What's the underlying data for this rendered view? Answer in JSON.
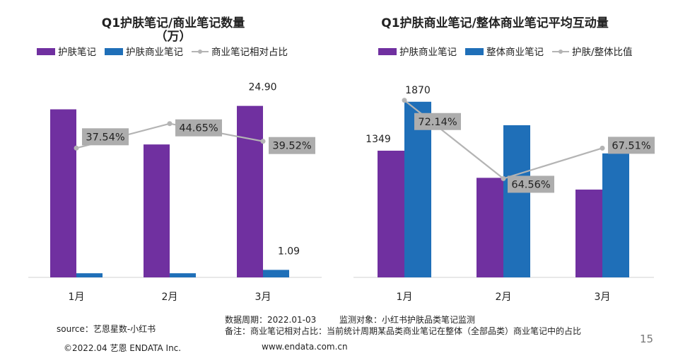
{
  "chart_data": [
    {
      "type": "bar",
      "title": "Q1护肤笔记/商业笔记数量",
      "subtitle": "（万）",
      "categories": [
        "1月",
        "2月",
        "3月"
      ],
      "series": [
        {
          "name": "护肤笔记",
          "kind": "bar",
          "color": "#7030A0",
          "values": [
            24.4,
            19.3,
            24.9
          ]
        },
        {
          "name": "护肤商业笔记",
          "kind": "bar",
          "color": "#1F6FB8",
          "values": [
            0.6,
            0.6,
            1.09
          ]
        },
        {
          "name": "商业笔记相对占比",
          "kind": "line",
          "color": "#B4B4B4",
          "values": [
            37.54,
            44.65,
            39.52
          ],
          "unit": "%"
        }
      ],
      "ylim": [
        0,
        30
      ],
      "line_ylim": [
        0,
        60
      ],
      "data_labels": [
        "24.90",
        "1.09",
        "37.54%",
        "44.65%",
        "39.52%"
      ],
      "xlabel": "",
      "ylabel": ""
    },
    {
      "type": "bar",
      "title": "Q1护肤商业笔记/整体商业笔记平均互动量",
      "categories": [
        "1月",
        "2月",
        "3月"
      ],
      "series": [
        {
          "name": "护肤商业笔记",
          "kind": "bar",
          "color": "#7030A0",
          "values": [
            1349,
            1060,
            935
          ]
        },
        {
          "name": "整体商业笔记",
          "kind": "bar",
          "color": "#1F6FB8",
          "values": [
            1870,
            1620,
            1320
          ]
        },
        {
          "name": "护肤/整体比值",
          "kind": "line",
          "color": "#B4B4B4",
          "values": [
            72.14,
            64.56,
            67.51
          ],
          "unit": "%"
        }
      ],
      "ylim": [
        0,
        2200
      ],
      "line_ylim": [
        55,
        75
      ],
      "data_labels": [
        "1349",
        "1870",
        "72.14%",
        "64.56%",
        "67.51%"
      ],
      "xlabel": "",
      "ylabel": ""
    }
  ],
  "footer": {
    "source": "source：艺恩星数-小红书",
    "period": "数据周期：2022.01-03",
    "monitor": "监测对象：小红书护肤品类笔记监测",
    "note": "备注：商业笔记相对占比：当前统计周期某品类商业笔记在整体（全部品类）商业笔记中的占比",
    "copyright": "©2022.04 艺恩 ENDATA Inc.",
    "website": "www.endata.com.cn",
    "page": "15"
  }
}
